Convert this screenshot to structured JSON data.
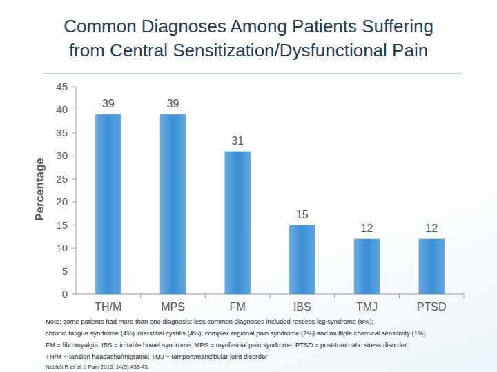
{
  "chart_data": {
    "type": "bar",
    "title": "Common Diagnoses Among Patients Suffering\nfrom Central Sensitization/Dysfunctional Pain",
    "y_label": "Percentage",
    "categories": [
      "TH/M",
      "MPS",
      "FM",
      "IBS",
      "TMJ",
      "PTSD"
    ],
    "values": [
      39,
      39,
      31,
      15,
      12,
      12
    ],
    "color": "#3a8fd6",
    "ylim": [
      0,
      45
    ],
    "yticks": [
      0,
      5,
      10,
      15,
      20,
      25,
      30,
      35,
      40,
      45
    ],
    "grid": false,
    "data_labels": true,
    "annotations": [
      "Note: some patients had more than one diagnosis; less common diagnoses included restless leg syndrome (8%);",
      "chronic fatigue syndrome (4%) interstitial cystitis (4%), complex regional pain syndrome (2%) and multiple chemical sensitivity (1%)",
      "FM = fibromyalgia; IBS = irritable bowel syndrome; MPS = myofascial pain syndrome; PTSD = post-traumatic stress disorder;",
      "TH/M = tension headache/migraine; TMJ = temporomandibular joint  disorder"
    ],
    "source": "Neblett R et al. J Pain 2013; 14(5):438-45."
  }
}
